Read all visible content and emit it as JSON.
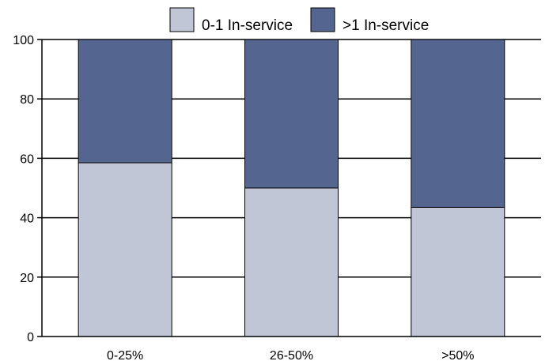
{
  "chart_data": {
    "type": "bar",
    "stacked": true,
    "title": "",
    "xlabel": "",
    "ylabel": "",
    "categories": [
      "0-25%",
      "26-50%",
      ">50%"
    ],
    "series": [
      {
        "name": "0-1 In-service",
        "values": [
          58.5,
          50,
          43.5
        ],
        "color": "#c0c6d6"
      },
      {
        "name": ">1 In-service",
        "values": [
          41.5,
          50,
          56.5
        ],
        "color": "#54668f"
      }
    ],
    "ylim": [
      0,
      100
    ],
    "yticks": [
      0,
      20,
      40,
      60,
      80,
      100
    ],
    "grid": true,
    "legend_position": "top-center"
  }
}
